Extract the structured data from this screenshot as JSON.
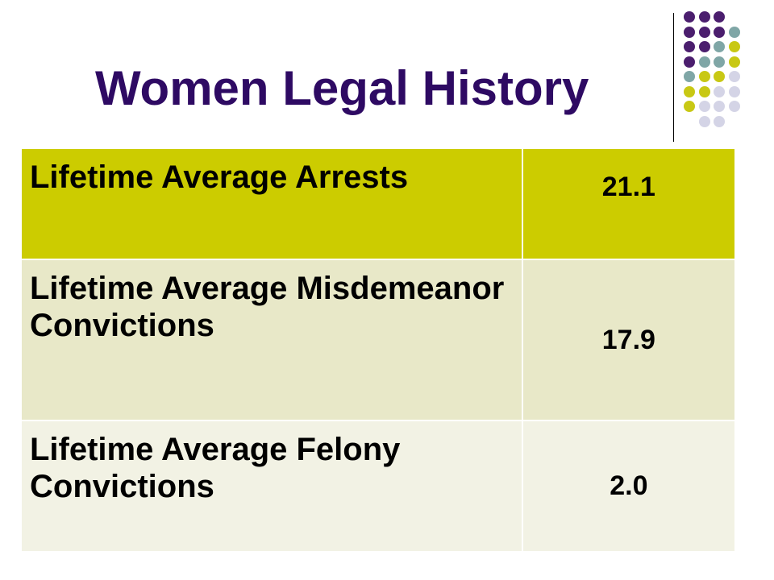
{
  "slide": {
    "title": "Women Legal History",
    "colors": {
      "title": "#2e0a63",
      "row1_bg": "#cccc00",
      "row2_bg": "#e8e8c8",
      "row3_bg": "#f2f2e4",
      "dot_purple": "#4b1e6e",
      "dot_teal": "#7fa6a6",
      "dot_yellow": "#c8c814",
      "dot_lavender": "#d4d4e6"
    }
  },
  "table": {
    "rows": [
      {
        "label": "Lifetime Average Arrests",
        "value": "21.1"
      },
      {
        "label": "Lifetime Average Misdemeanor Convictions",
        "value": "17.9"
      },
      {
        "label": "Lifetime Average Felony Convictions",
        "value": "2.0"
      }
    ]
  }
}
